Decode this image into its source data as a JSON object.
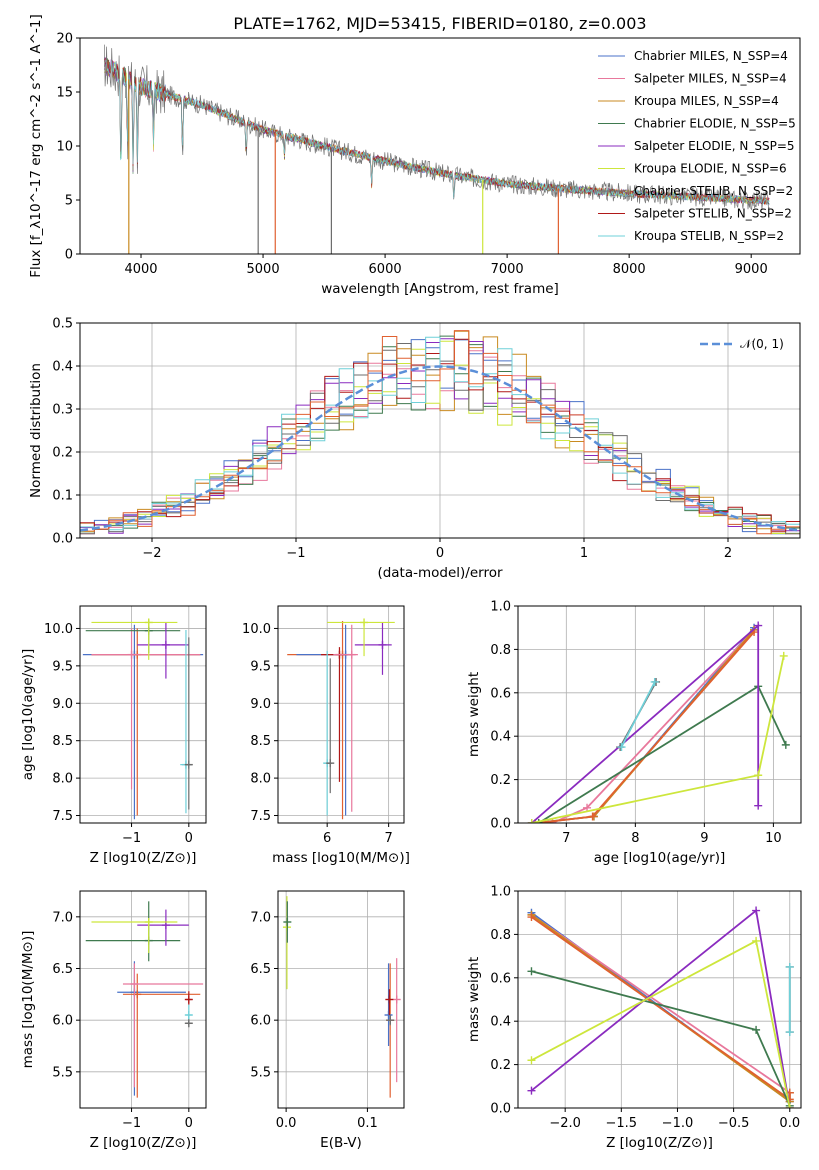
{
  "figure_title": "PLATE=1762, MJD=53415, FIBERID=0180, z=0.003",
  "palette": [
    "#4a72c8",
    "#e8789c",
    "#c98a20",
    "#3f7a4f",
    "#8a2bbf",
    "#cde63c",
    "#6d6d6d",
    "#b01818",
    "#6fd0d8"
  ],
  "chart_data": [
    {
      "type": "line",
      "panel": "spectrum",
      "xlabel": "wavelength [Angstrom, rest frame]",
      "ylabel": "Flux [f_λ10^-17 erg cm^-2 s^-1 A^-1]",
      "xlim": [
        3500,
        9400
      ],
      "ylim": [
        0,
        20
      ],
      "xticks": [
        4000,
        5000,
        6000,
        7000,
        8000,
        9000
      ],
      "yticks": [
        0,
        5,
        10,
        15,
        20
      ],
      "legend_position": "right",
      "series": [
        {
          "name": "Chabrier MILES, N_SSP=4",
          "color": "#4a72c8"
        },
        {
          "name": "Salpeter MILES, N_SSP=4",
          "color": "#e8789c"
        },
        {
          "name": "Kroupa MILES, N_SSP=4",
          "color": "#c98a20"
        },
        {
          "name": "Chabrier ELODIE, N_SSP=5",
          "color": "#3f7a4f"
        },
        {
          "name": "Salpeter ELODIE, N_SSP=5",
          "color": "#8a2bbf"
        },
        {
          "name": "Kroupa ELODIE, N_SSP=6",
          "color": "#cde63c"
        },
        {
          "name": "Chabrier STELIB, N_SSP=2",
          "color": "#6d6d6d"
        },
        {
          "name": "Salpeter STELIB, N_SSP=2",
          "color": "#b01818"
        },
        {
          "name": "Kroupa STELIB, N_SSP=2",
          "color": "#6fd0d8"
        }
      ],
      "continuum": {
        "x": [
          3700,
          4000,
          4500,
          5000,
          5500,
          6000,
          6500,
          7000,
          7500,
          8000,
          8500,
          9000,
          9150
        ],
        "y": [
          17.5,
          15.5,
          13.8,
          11.5,
          10.0,
          8.6,
          7.4,
          6.5,
          6.0,
          5.6,
          5.3,
          5.0,
          4.9
        ]
      },
      "cutoffs": [
        {
          "x": 3900,
          "color": "#c98a20"
        },
        {
          "x": 5100,
          "color": "#e06030"
        },
        {
          "x": 6800,
          "color": "#cde63c"
        },
        {
          "x": 7420,
          "color": "#e06030"
        },
        {
          "x": 4960,
          "color": "#6d6d6d"
        },
        {
          "x": 5560,
          "color": "#6d6d6d"
        }
      ],
      "absorption_lines": [
        {
          "x": 3835,
          "depth": 9
        },
        {
          "x": 3890,
          "depth": 6
        },
        {
          "x": 3935,
          "depth": 8
        },
        {
          "x": 3970,
          "depth": 7
        },
        {
          "x": 4102,
          "depth": 5
        },
        {
          "x": 4340,
          "depth": 5
        },
        {
          "x": 4861,
          "depth": 3
        },
        {
          "x": 5175,
          "depth": 2
        },
        {
          "x": 5890,
          "depth": 2.5
        },
        {
          "x": 6563,
          "depth": 2
        }
      ]
    },
    {
      "type": "histogram",
      "panel": "residuals",
      "xlabel": "(data-model)/error",
      "ylabel": "Normed distribution",
      "xlim": [
        -2.5,
        2.5
      ],
      "ylim": [
        0,
        0.5
      ],
      "xticks": [
        -2,
        -1,
        0,
        1,
        2
      ],
      "yticks": [
        0.0,
        0.1,
        0.2,
        0.3,
        0.4,
        0.5
      ],
      "grid": true,
      "bin_width": 0.1,
      "gaussian_label": "𝒩(0, 1)",
      "gaussian_color": "#5b8fd8",
      "legend_position": "top-right",
      "series": [
        {
          "color": "#4a72c8",
          "jitter_seed": 1
        },
        {
          "color": "#e8789c",
          "jitter_seed": 2
        },
        {
          "color": "#c98a20",
          "jitter_seed": 3
        },
        {
          "color": "#3f7a4f",
          "jitter_seed": 4
        },
        {
          "color": "#8a2bbf",
          "jitter_seed": 5
        },
        {
          "color": "#cde63c",
          "jitter_seed": 6
        },
        {
          "color": "#6d6d6d",
          "jitter_seed": 7
        },
        {
          "color": "#b01818",
          "jitter_seed": 8
        },
        {
          "color": "#6fd0d8",
          "jitter_seed": 9
        },
        {
          "color": "#e06030",
          "jitter_seed": 10
        }
      ]
    },
    {
      "type": "errorbar",
      "panel": "age_vs_Z",
      "xlabel": "Z [log10(Z/Z⊙)]",
      "ylabel": "age [log10(age/yr)]",
      "xlim": [
        -1.9,
        0.3
      ],
      "ylim": [
        7.4,
        10.3
      ],
      "xticks": [
        -1,
        0
      ],
      "yticks": [
        7.5,
        8.0,
        8.5,
        9.0,
        9.5,
        10.0
      ],
      "grid": true,
      "points": [
        {
          "x": -0.95,
          "y": 9.65,
          "xerr": [
            0.9,
            1.2
          ],
          "yerr": [
            2.2,
            0.4
          ],
          "color": "#4a72c8"
        },
        {
          "x": -0.9,
          "y": 9.65,
          "xerr": [
            0.8,
            1.1
          ],
          "yerr": [
            2.15,
            0.35
          ],
          "color": "#e06030"
        },
        {
          "x": -1.0,
          "y": 9.65,
          "xerr": [
            0.7,
            1.2
          ],
          "yerr": [
            1.8,
            0.35
          ],
          "color": "#e8789c"
        },
        {
          "x": -0.7,
          "y": 9.97,
          "xerr": [
            1.1,
            0.55
          ],
          "yerr": [
            0.3,
            0.15
          ],
          "color": "#3f7a4f"
        },
        {
          "x": -0.4,
          "y": 9.78,
          "xerr": [
            0.5,
            0.4
          ],
          "yerr": [
            0.45,
            0.3
          ],
          "color": "#8a2bbf"
        },
        {
          "x": -0.7,
          "y": 10.08,
          "xerr": [
            1.0,
            0.5
          ],
          "yerr": [
            0.5,
            0.0
          ],
          "color": "#cde63c"
        },
        {
          "x": -0.05,
          "y": 8.18,
          "xerr": [
            0.1,
            0.1
          ],
          "yerr": [
            0.65,
            1.8
          ],
          "color": "#6fd0d8"
        },
        {
          "x": 0.0,
          "y": 8.18,
          "xerr": [
            0.06,
            0.06
          ],
          "yerr": [
            0.6,
            1.7
          ],
          "color": "#6d6d6d"
        }
      ]
    },
    {
      "type": "errorbar",
      "panel": "age_vs_mass",
      "xlabel": "mass [log10(M/M⊙)]",
      "ylabel": "",
      "xlim": [
        5.2,
        7.25
      ],
      "ylim": [
        7.4,
        10.3
      ],
      "xticks": [
        6,
        7
      ],
      "yticks": [
        7.5,
        8.0,
        8.5,
        9.0,
        9.5,
        10.0
      ],
      "grid": true,
      "points": [
        {
          "x": 6.25,
          "y": 9.65,
          "xerr": [
            0.9,
            0.15
          ],
          "yerr": [
            2.2,
            0.45
          ],
          "color": "#e06030"
        },
        {
          "x": 6.3,
          "y": 9.65,
          "xerr": [
            0.8,
            0.12
          ],
          "yerr": [
            2.15,
            0.4
          ],
          "color": "#4a72c8"
        },
        {
          "x": 6.2,
          "y": 9.65,
          "xerr": [
            0.3,
            0.2
          ],
          "yerr": [
            1.7,
            0.1
          ],
          "color": "#b01818"
        },
        {
          "x": 6.4,
          "y": 9.65,
          "xerr": [
            0.3,
            0.1
          ],
          "yerr": [
            2.1,
            0.4
          ],
          "color": "#e8789c"
        },
        {
          "x": 6.9,
          "y": 9.78,
          "xerr": [
            0.45,
            0.15
          ],
          "yerr": [
            0.4,
            0.3
          ],
          "color": "#8a2bbf"
        },
        {
          "x": 6.6,
          "y": 10.08,
          "xerr": [
            0.6,
            0.5
          ],
          "yerr": [
            0.45,
            0.0
          ],
          "color": "#cde63c"
        },
        {
          "x": 6.0,
          "y": 8.2,
          "xerr": [
            0.05,
            0.05
          ],
          "yerr": [
            0.7,
            1.5
          ],
          "color": "#6fd0d8"
        },
        {
          "x": 6.05,
          "y": 8.2,
          "xerr": [
            0.05,
            0.03
          ],
          "yerr": [
            0.4,
            1.4
          ],
          "color": "#6d6d6d"
        }
      ]
    },
    {
      "type": "line",
      "panel": "massweight_vs_age",
      "xlabel": "age [log10(age/yr)]",
      "ylabel": "mass weight",
      "xlim": [
        6.3,
        10.4
      ],
      "ylim": [
        0,
        1.0
      ],
      "xticks": [
        7,
        8,
        9,
        10
      ],
      "yticks": [
        0.0,
        0.2,
        0.4,
        0.6,
        0.8,
        1.0
      ],
      "grid": true,
      "series": [
        {
          "color": "#4a72c8",
          "x": [
            6.55,
            7.4,
            9.72
          ],
          "y": [
            0.0,
            0.03,
            0.9
          ]
        },
        {
          "color": "#e8789c",
          "x": [
            6.8,
            7.3,
            9.72
          ],
          "y": [
            0.0,
            0.07,
            0.89
          ]
        },
        {
          "color": "#c98a20",
          "x": [
            6.55,
            7.4,
            9.72
          ],
          "y": [
            0.0,
            0.03,
            0.89
          ]
        },
        {
          "color": "#e06030",
          "x": [
            6.6,
            7.38,
            9.72
          ],
          "y": [
            0.0,
            0.03,
            0.88
          ]
        },
        {
          "color": "#3f7a4f",
          "x": [
            6.6,
            9.78,
            10.18
          ],
          "y": [
            0.0,
            0.63,
            0.36
          ]
        },
        {
          "color": "#8a2bbf",
          "x": [
            6.5,
            9.78,
            9.78
          ],
          "y": [
            0.0,
            0.91,
            0.08
          ]
        },
        {
          "color": "#cde63c",
          "x": [
            6.5,
            9.78,
            10.15
          ],
          "y": [
            0.0,
            0.22,
            0.77
          ]
        },
        {
          "color": "#6d6d6d",
          "x": [
            7.78,
            8.3
          ],
          "y": [
            0.35,
            0.65
          ]
        },
        {
          "color": "#6fd0d8",
          "x": [
            7.8,
            8.28
          ],
          "y": [
            0.35,
            0.65
          ]
        }
      ]
    },
    {
      "type": "errorbar",
      "panel": "mass_vs_Z",
      "xlabel": "Z [log10(Z/Z⊙)]",
      "ylabel": "mass [log10(M/M⊙)]",
      "xlim": [
        -1.9,
        0.3
      ],
      "ylim": [
        5.15,
        7.25
      ],
      "xticks": [
        -1,
        0
      ],
      "yticks": [
        5.5,
        6.0,
        6.5,
        7.0
      ],
      "grid": true,
      "points": [
        {
          "x": -0.95,
          "y": 6.27,
          "xerr": [
            0.3,
            0.9
          ],
          "yerr": [
            1.0,
            0.3
          ],
          "color": "#4a72c8"
        },
        {
          "x": -0.9,
          "y": 6.25,
          "xerr": [
            0.25,
            1.1
          ],
          "yerr": [
            1.0,
            0.2
          ],
          "color": "#e06030"
        },
        {
          "x": -0.95,
          "y": 6.35,
          "xerr": [
            0.2,
            1.2
          ],
          "yerr": [
            1.0,
            0.2
          ],
          "color": "#e8789c"
        },
        {
          "x": -0.7,
          "y": 6.77,
          "xerr": [
            1.1,
            0.55
          ],
          "yerr": [
            0.2,
            0.38
          ],
          "color": "#3f7a4f"
        },
        {
          "x": -0.4,
          "y": 6.92,
          "xerr": [
            0.5,
            0.4
          ],
          "yerr": [
            0.2,
            0.15
          ],
          "color": "#8a2bbf"
        },
        {
          "x": -0.7,
          "y": 6.95,
          "xerr": [
            1.0,
            0.5
          ],
          "yerr": [
            0.3,
            0.0
          ],
          "color": "#cde63c"
        },
        {
          "x": 0.0,
          "y": 6.2,
          "xerr": [
            0.05,
            0.05
          ],
          "yerr": [
            0.05,
            0.08
          ],
          "color": "#b01818"
        },
        {
          "x": 0.0,
          "y": 6.05,
          "xerr": [
            0.06,
            0.06
          ],
          "yerr": [
            0.1,
            0.1
          ],
          "color": "#6fd0d8"
        },
        {
          "x": 0.0,
          "y": 5.97,
          "xerr": [
            0.06,
            0.06
          ],
          "yerr": [
            0.02,
            0.02
          ],
          "color": "#6d6d6d"
        }
      ]
    },
    {
      "type": "errorbar",
      "panel": "mass_vs_EBV",
      "xlabel": "E(B-V)",
      "ylabel": "",
      "xlim": [
        -0.01,
        0.145
      ],
      "ylim": [
        5.15,
        7.25
      ],
      "xticks": [
        0.0,
        0.1
      ],
      "yticks": [
        5.5,
        6.0,
        6.5,
        7.0
      ],
      "grid": true,
      "points": [
        {
          "x": 0.001,
          "y": 6.9,
          "xerr": [
            0.0,
            0.0
          ],
          "yerr": [
            0.6,
            0.3
          ],
          "color": "#cde63c"
        },
        {
          "x": 0.0015,
          "y": 6.95,
          "xerr": [
            0.0,
            0.0
          ],
          "yerr": [
            0.2,
            0.2
          ],
          "color": "#3f7a4f"
        },
        {
          "x": 0.128,
          "y": 6.0,
          "xerr": [
            0.0,
            0.0
          ],
          "yerr": [
            0.75,
            0.55
          ],
          "color": "#e06030"
        },
        {
          "x": 0.126,
          "y": 6.05,
          "xerr": [
            0.0,
            0.0
          ],
          "yerr": [
            0.3,
            0.5
          ],
          "color": "#4a72c8"
        },
        {
          "x": 0.136,
          "y": 6.2,
          "xerr": [
            0.0,
            0.0
          ],
          "yerr": [
            0.8,
            0.4
          ],
          "color": "#e8789c"
        },
        {
          "x": 0.127,
          "y": 6.2,
          "xerr": [
            0.0,
            0.0
          ],
          "yerr": [
            0.15,
            0.1
          ],
          "color": "#b01818"
        },
        {
          "x": 0.128,
          "y": 6.0,
          "xerr": [
            0.0,
            0.0
          ],
          "yerr": [
            0.05,
            0.05
          ],
          "color": "#6d6d6d"
        }
      ]
    },
    {
      "type": "line",
      "panel": "massweight_vs_Z",
      "xlabel": "Z [log10(Z/Z⊙)]",
      "ylabel": "mass weight",
      "xlim": [
        -2.42,
        0.1
      ],
      "ylim": [
        0,
        1.0
      ],
      "xticks": [
        -2.0,
        -1.5,
        -1.0,
        -0.5,
        0.0
      ],
      "yticks": [
        0.0,
        0.2,
        0.4,
        0.6,
        0.8,
        1.0
      ],
      "grid": true,
      "series": [
        {
          "color": "#4a72c8",
          "x": [
            -2.3,
            0.0,
            0.0
          ],
          "y": [
            0.9,
            0.03,
            0.07
          ]
        },
        {
          "color": "#e8789c",
          "x": [
            -2.3,
            0.0,
            0.0
          ],
          "y": [
            0.89,
            0.07,
            0.03
          ]
        },
        {
          "color": "#c98a20",
          "x": [
            -2.3,
            0.0,
            0.0
          ],
          "y": [
            0.89,
            0.03,
            0.07
          ]
        },
        {
          "color": "#e06030",
          "x": [
            -2.3,
            0.0,
            0.0
          ],
          "y": [
            0.88,
            0.04,
            0.07
          ]
        },
        {
          "color": "#3f7a4f",
          "x": [
            -2.3,
            -0.3,
            0.0
          ],
          "y": [
            0.63,
            0.36,
            0.01
          ]
        },
        {
          "color": "#8a2bbf",
          "x": [
            -2.3,
            -0.3,
            0.0
          ],
          "y": [
            0.08,
            0.91,
            0.0
          ]
        },
        {
          "color": "#cde63c",
          "x": [
            -2.3,
            -0.3,
            0.0
          ],
          "y": [
            0.22,
            0.77,
            0.0
          ]
        },
        {
          "color": "#6d6d6d",
          "x": [
            0.0,
            0.0
          ],
          "y": [
            0.35,
            0.65
          ]
        },
        {
          "color": "#6fd0d8",
          "x": [
            0.0,
            0.0
          ],
          "y": [
            0.35,
            0.65
          ]
        }
      ]
    }
  ]
}
